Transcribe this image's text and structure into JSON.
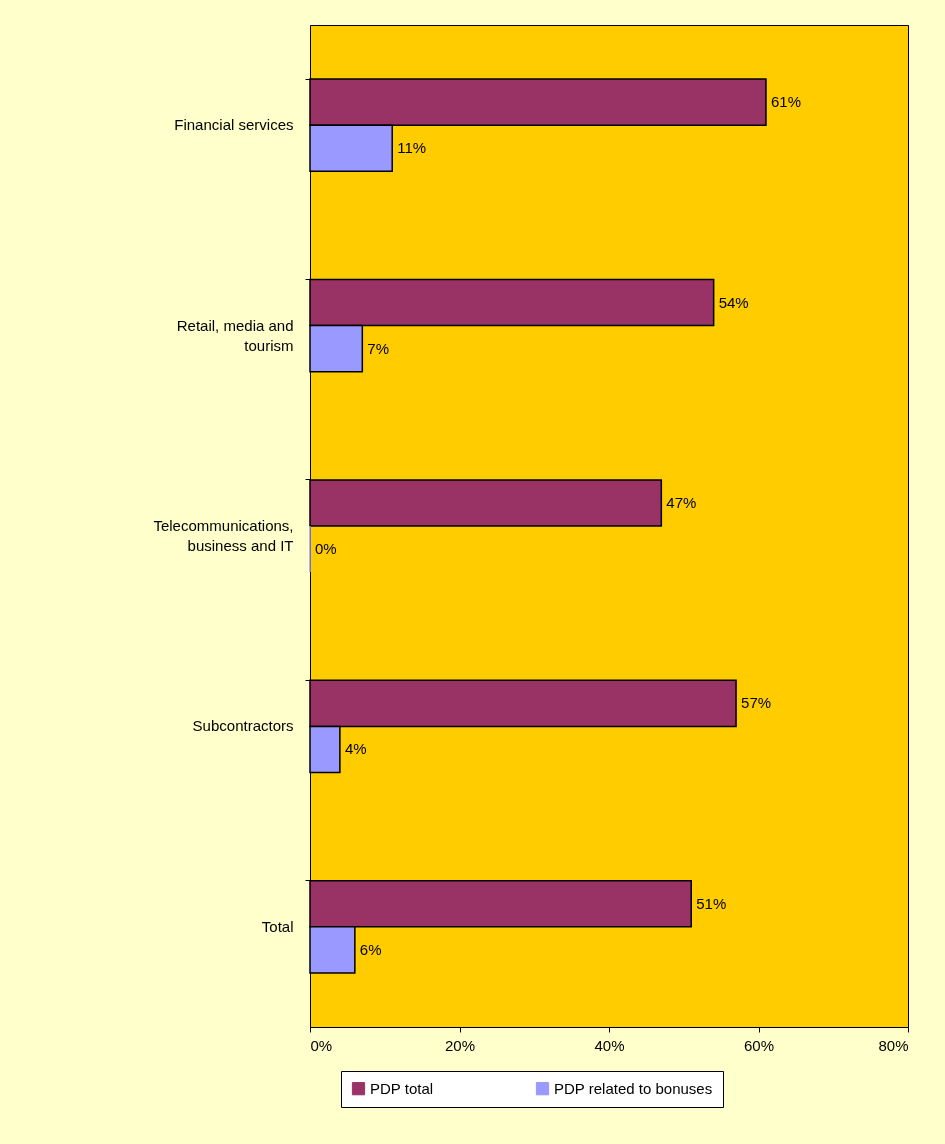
{
  "chart_data": {
    "type": "bar",
    "orientation": "horizontal",
    "categories": [
      "Financial services",
      "Retail, media and tourism",
      "Telecommunications, business and IT",
      "Subcontractors",
      "Total"
    ],
    "series": [
      {
        "name": "PDP total",
        "color": "#993366",
        "values": [
          61,
          54,
          47,
          57,
          51
        ],
        "value_labels": [
          "61%",
          "54%",
          "47%",
          "57%",
          "51%"
        ]
      },
      {
        "name": "PDP related to bonuses",
        "color": "#9999ff",
        "values": [
          11,
          7,
          0,
          4,
          6
        ],
        "value_labels": [
          "11%",
          "7%",
          "0%",
          "4%",
          "6%"
        ]
      }
    ],
    "xlim": [
      0,
      80
    ],
    "xticks": [
      {
        "value": 0,
        "label": "0%"
      },
      {
        "value": 20,
        "label": "20%"
      },
      {
        "value": 40,
        "label": "40%"
      },
      {
        "value": 60,
        "label": "60%"
      },
      {
        "value": 80,
        "label": "80%"
      }
    ],
    "grid": false,
    "legend": "bottom"
  }
}
